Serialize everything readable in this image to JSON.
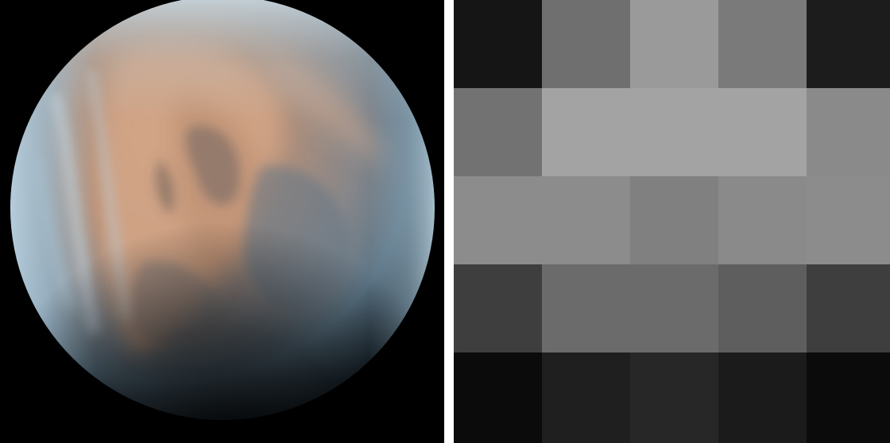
{
  "left_image": {
    "subject": "planet-photo",
    "colors": {
      "background": "#000000",
      "limb_blue": "#a9c3d3",
      "cloud_tan": "#c99a78",
      "cloud_dark": "#6f6764",
      "shadow_blue": "#4d6a7c"
    }
  },
  "pixel_grid": {
    "rows": 5,
    "cols": 5,
    "cells": [
      [
        "#151515",
        "#6f6f6f",
        "#9a9a9a",
        "#7a7a7a",
        "#1c1c1c"
      ],
      [
        "#727272",
        "#a3a3a3",
        "#a3a3a3",
        "#a3a3a3",
        "#8a8a8a"
      ],
      [
        "#8c8c8c",
        "#8c8c8c",
        "#808080",
        "#8a8a8a",
        "#8c8c8c"
      ],
      [
        "#3e3e3e",
        "#6b6b6b",
        "#6b6b6b",
        "#5e5e5e",
        "#3e3e3e"
      ],
      [
        "#0b0b0b",
        "#1f1f1f",
        "#272727",
        "#1b1b1b",
        "#0b0b0b"
      ]
    ]
  }
}
